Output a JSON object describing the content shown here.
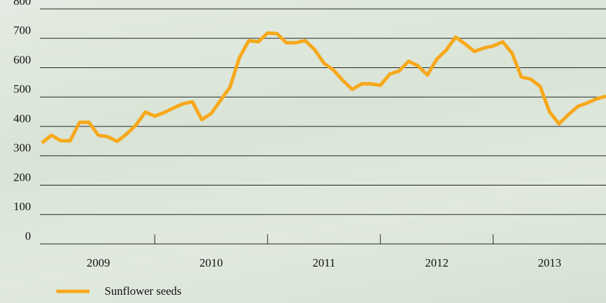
{
  "chart_data": {
    "type": "line",
    "categories": [
      null,
      null,
      null,
      null,
      null,
      null,
      "2009",
      null,
      null,
      null,
      null,
      null,
      null,
      null,
      null,
      null,
      null,
      null,
      "2010",
      null,
      null,
      null,
      null,
      null,
      null,
      null,
      null,
      null,
      null,
      null,
      "2011",
      null,
      null,
      null,
      null,
      null,
      null,
      null,
      null,
      null,
      null,
      null,
      "2012",
      null,
      null,
      null,
      null,
      null,
      null,
      null,
      null,
      null,
      null,
      null,
      "2013",
      null,
      null,
      null,
      null,
      null,
      null
    ],
    "series": [
      {
        "name": "Sunflower seeds",
        "color": "#f7a81b",
        "values": [
          344,
          370,
          351,
          351,
          414,
          414,
          370,
          365,
          349,
          374,
          405,
          449,
          435,
          447,
          463,
          477,
          484,
          423,
          444,
          489,
          533,
          634,
          692,
          688,
          718,
          716,
          685,
          685,
          692,
          662,
          615,
          592,
          557,
          526,
          545,
          545,
          540,
          578,
          589,
          622,
          606,
          575,
          629,
          660,
          704,
          681,
          655,
          667,
          674,
          688,
          650,
          568,
          561,
          536,
          449,
          409,
          440,
          468,
          480,
          494,
          503
        ]
      }
    ],
    "ylim": [
      0,
      800
    ],
    "yticks": [
      0,
      100,
      200,
      300,
      400,
      500,
      600,
      700,
      800
    ],
    "grid": true
  }
}
